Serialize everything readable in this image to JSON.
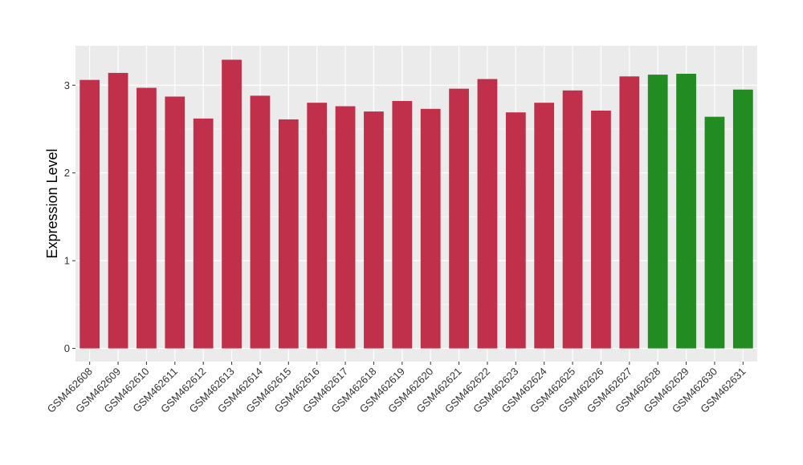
{
  "chart_data": {
    "type": "bar",
    "title": "",
    "xlabel": "",
    "ylabel": "Expression Level",
    "ylim": [
      -0.15,
      3.45
    ],
    "yticks": [
      0,
      1,
      2,
      3
    ],
    "grid": true,
    "legend": "none",
    "background_color": "#EBEBEB",
    "grid_color": "#FFFFFF",
    "categories": [
      "GSM462608",
      "GSM462609",
      "GSM462610",
      "GSM462611",
      "GSM462612",
      "GSM462613",
      "GSM462614",
      "GSM462615",
      "GSM462616",
      "GSM462617",
      "GSM462618",
      "GSM462619",
      "GSM462620",
      "GSM462621",
      "GSM462622",
      "GSM462623",
      "GSM462624",
      "GSM462625",
      "GSM462626",
      "GSM462627",
      "GSM462628",
      "GSM462629",
      "GSM462630",
      "GSM462631"
    ],
    "values": [
      3.06,
      3.14,
      2.97,
      2.87,
      2.62,
      3.29,
      2.88,
      2.61,
      2.8,
      2.76,
      2.7,
      2.82,
      2.73,
      2.96,
      3.07,
      2.69,
      2.8,
      2.94,
      2.71,
      3.1,
      3.12,
      3.13,
      2.64,
      2.95
    ],
    "colors": [
      "#C1304A",
      "#C1304A",
      "#C1304A",
      "#C1304A",
      "#C1304A",
      "#C1304A",
      "#C1304A",
      "#C1304A",
      "#C1304A",
      "#C1304A",
      "#C1304A",
      "#C1304A",
      "#C1304A",
      "#C1304A",
      "#C1304A",
      "#C1304A",
      "#C1304A",
      "#C1304A",
      "#C1304A",
      "#C1304A",
      "#228B22",
      "#228B22",
      "#228B22",
      "#228B22"
    ]
  }
}
